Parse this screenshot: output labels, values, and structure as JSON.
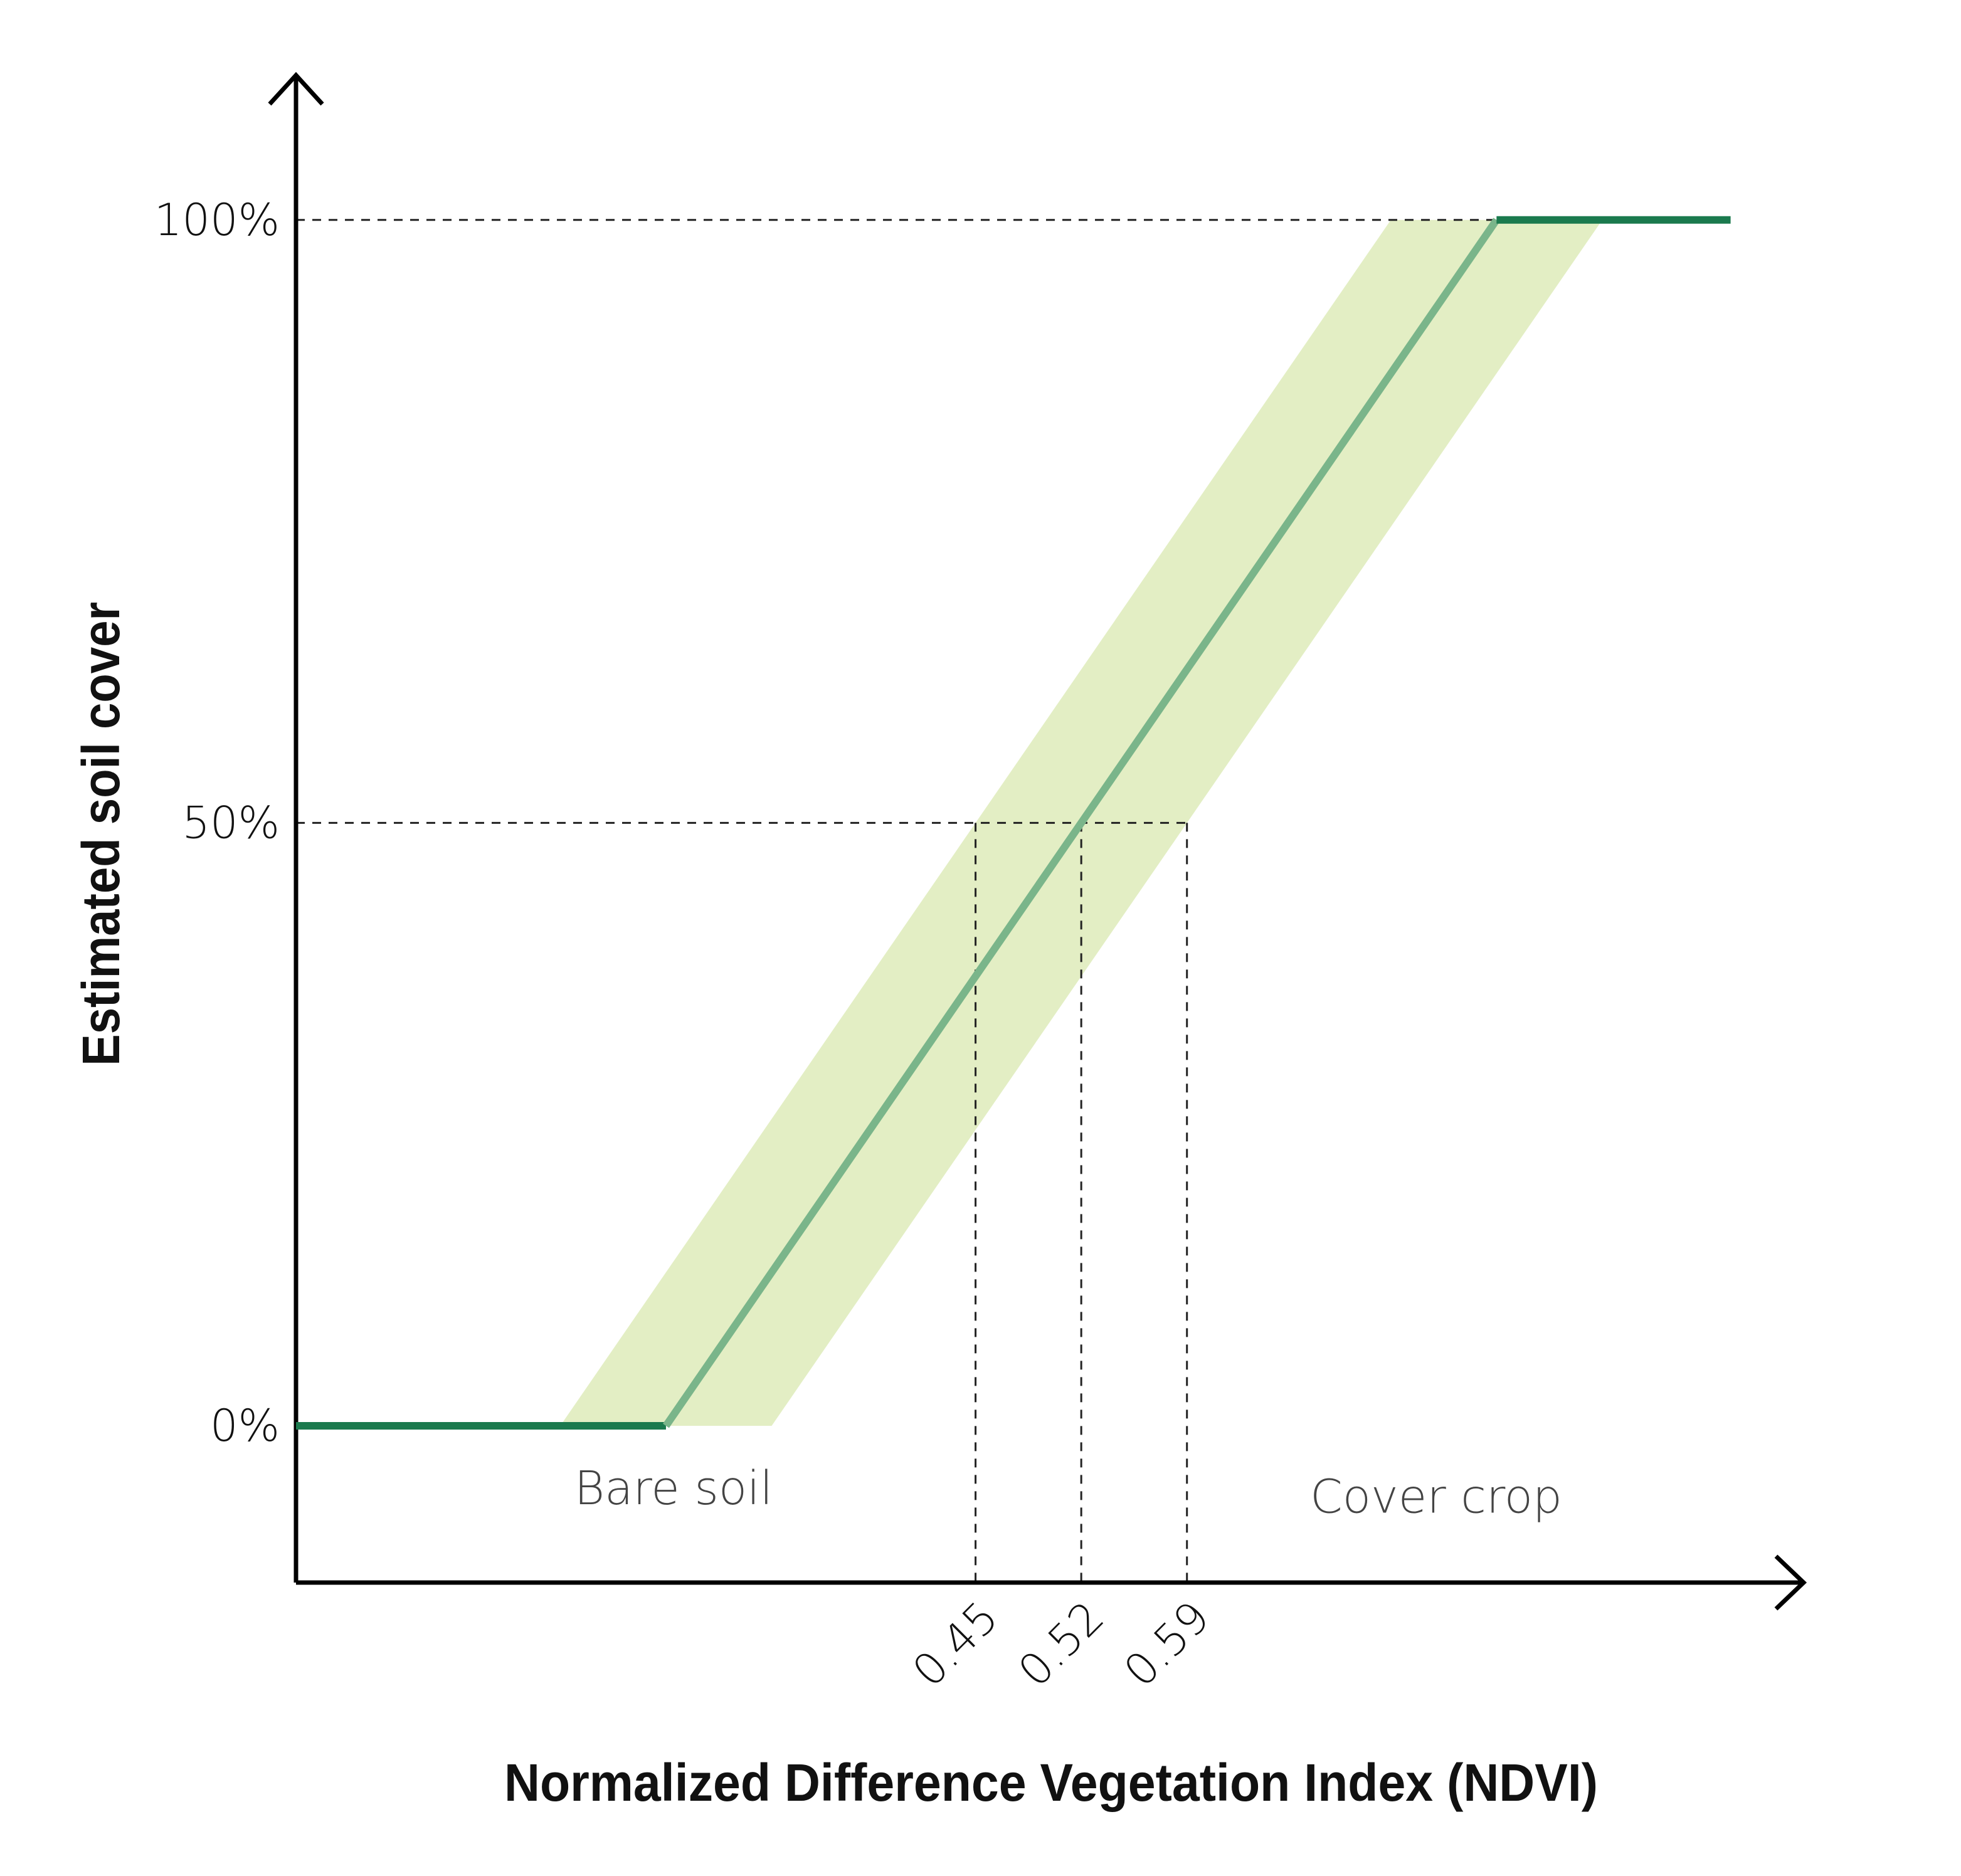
{
  "chart_data": {
    "type": "line",
    "x_label": "Normalized Difference Vegetation Index (NDVI)",
    "y_label": "Estimated soil cover",
    "xlim": [
      0,
      1.0
    ],
    "ylim": [
      -13,
      112
    ],
    "xticks": [
      0.45,
      0.52,
      0.59
    ],
    "yticks": [
      {
        "value": 0,
        "label": "0%"
      },
      {
        "value": 50,
        "label": "50%"
      },
      {
        "value": 100,
        "label": "100%"
      }
    ],
    "series": [
      {
        "x": [
          0,
          0.245,
          0.795,
          0.95
        ],
        "values": [
          0,
          0,
          100,
          100
        ],
        "segment_colors": [
          "#1b7a4e",
          "#7ab58a",
          "#1b7a4e"
        ]
      }
    ],
    "band": {
      "color": "#e3eec4",
      "x_left": [
        0.175,
        0.725
      ],
      "x_right": [
        0.315,
        0.865
      ],
      "y": [
        0,
        100
      ]
    },
    "annotations": [
      {
        "text": "Bare soil",
        "x": 0.25,
        "y": -6.5
      },
      {
        "text": "Cover crop",
        "x": 0.755,
        "y": -7.2
      }
    ]
  }
}
